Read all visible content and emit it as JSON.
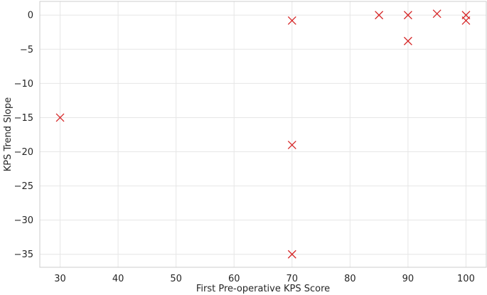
{
  "chart_data": {
    "type": "scatter",
    "xlabel": "First Pre-operative KPS Score",
    "ylabel": "KPS Trend Slope",
    "xlim": [
      26.5,
      103.5
    ],
    "ylim": [
      -36.9,
      2.0
    ],
    "xticks": [
      30,
      40,
      50,
      60,
      70,
      80,
      90,
      100
    ],
    "yticks": [
      0,
      -5,
      -10,
      -15,
      -20,
      -25,
      -30,
      -35
    ],
    "grid": true,
    "marker": "x",
    "marker_color": "#d62728",
    "points": [
      {
        "x": 30,
        "y": -15
      },
      {
        "x": 70,
        "y": -0.8
      },
      {
        "x": 70,
        "y": -19
      },
      {
        "x": 70,
        "y": -35
      },
      {
        "x": 85,
        "y": 0
      },
      {
        "x": 90,
        "y": 0
      },
      {
        "x": 90,
        "y": -3.8
      },
      {
        "x": 95,
        "y": 0.2
      },
      {
        "x": 100,
        "y": 0
      },
      {
        "x": 100,
        "y": -0.8
      }
    ]
  }
}
